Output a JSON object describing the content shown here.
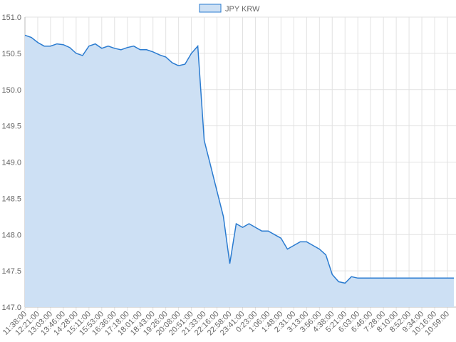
{
  "chart_data": {
    "type": "area",
    "legend": "top",
    "series": [
      {
        "name": "JPY KRW",
        "color": "#2a7bd0",
        "fill": "#cde0f4",
        "values": [
          150.75,
          150.72,
          150.65,
          150.6,
          150.6,
          150.63,
          150.62,
          150.58,
          150.5,
          150.47,
          150.6,
          150.63,
          150.57,
          150.6,
          150.57,
          150.55,
          150.58,
          150.6,
          150.55,
          150.55,
          150.52,
          150.48,
          150.45,
          150.37,
          150.33,
          150.35,
          150.5,
          150.6,
          149.3,
          148.95,
          148.6,
          148.25,
          147.6,
          148.15,
          148.1,
          148.15,
          148.1,
          148.05,
          148.05,
          148.0,
          147.95,
          147.8,
          147.85,
          147.9,
          147.9,
          147.85,
          147.8,
          147.72,
          147.45,
          147.35,
          147.33,
          147.42,
          147.4,
          147.4,
          147.4,
          147.4,
          147.4,
          147.4,
          147.4,
          147.4,
          147.4,
          147.4,
          147.4,
          147.4,
          147.4,
          147.4,
          147.4,
          147.4
        ]
      }
    ],
    "categories": [
      "11:38:00",
      null,
      "12:21:00",
      null,
      "13:03:00",
      null,
      "13:46:00",
      null,
      "14:28:00",
      null,
      "15:11:00",
      null,
      "15:53:00",
      null,
      "16:36:00",
      null,
      "17:18:00",
      null,
      "18:01:00",
      null,
      "18:43:00",
      null,
      "19:26:00",
      null,
      "20:08:00",
      null,
      "20:51:00",
      null,
      "21:33:00",
      null,
      "22:16:00",
      null,
      "22:58:00",
      null,
      "23:41:00",
      null,
      "0:23:00",
      null,
      "1:06:00",
      null,
      "1:48:00",
      null,
      "2:31:00",
      null,
      "3:13:00",
      null,
      "3:56:00",
      null,
      "4:38:00",
      null,
      "5:21:00",
      null,
      "6:03:00",
      null,
      "6:46:00",
      null,
      "7:28:00",
      null,
      "8:10:00",
      null,
      "8:52:00",
      null,
      "9:34:00",
      null,
      "10:16:00",
      null,
      "10:59:00",
      null
    ],
    "ylim": [
      147.0,
      151.0
    ],
    "yticks": [
      {
        "value": 147.0,
        "label": "147.0"
      },
      {
        "value": 147.5,
        "label": "147.5"
      },
      {
        "value": 148.0,
        "label": "148.0"
      },
      {
        "value": 148.5,
        "label": "148.5"
      },
      {
        "value": 149.0,
        "label": "149.0"
      },
      {
        "value": 149.5,
        "label": "149.5"
      },
      {
        "value": 150.0,
        "label": "150.0"
      },
      {
        "value": 150.5,
        "label": "150.5"
      },
      {
        "value": 151.0,
        "label": "151.0"
      }
    ],
    "grid": true
  }
}
